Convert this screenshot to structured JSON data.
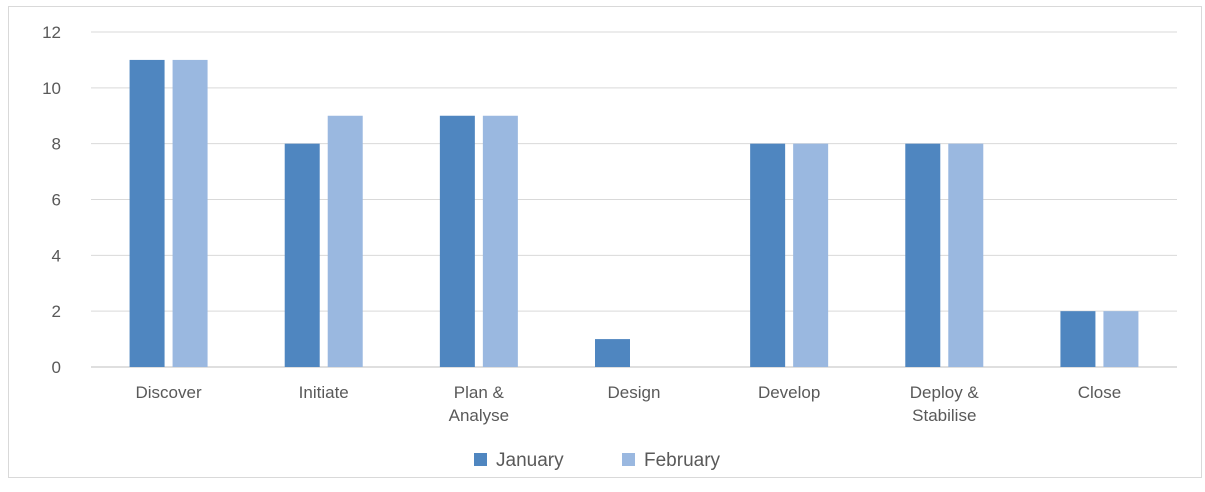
{
  "chart_data": {
    "type": "bar",
    "title": "",
    "xlabel": "",
    "ylabel": "",
    "categories": [
      [
        "Discover"
      ],
      [
        "Initiate"
      ],
      [
        "Plan &",
        "Analyse"
      ],
      [
        "Design"
      ],
      [
        "Develop"
      ],
      [
        "Deploy &",
        "Stabilise"
      ],
      [
        "Close"
      ]
    ],
    "series": [
      {
        "name": "January",
        "color": "#4f86c0",
        "values": [
          11,
          8,
          9,
          1,
          8,
          8,
          2
        ]
      },
      {
        "name": "February",
        "color": "#9ab8e0",
        "values": [
          11,
          9,
          9,
          0,
          8,
          8,
          2
        ]
      }
    ],
    "ylim": [
      0,
      12
    ],
    "yticks": [
      0,
      2,
      4,
      6,
      8,
      10,
      12
    ],
    "grid": true,
    "legend": "bottom-center",
    "colors": {
      "grid": "#d9d9d9",
      "text": "#595959",
      "axis": "#bfbfbf"
    }
  }
}
